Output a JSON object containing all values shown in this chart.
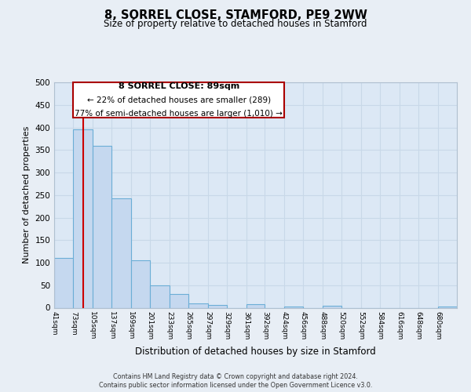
{
  "title": "8, SORREL CLOSE, STAMFORD, PE9 2WW",
  "subtitle": "Size of property relative to detached houses in Stamford",
  "xlabel": "Distribution of detached houses by size in Stamford",
  "ylabel": "Number of detached properties",
  "property_size": 89,
  "bar_edges": [
    41,
    73,
    105,
    137,
    169,
    201,
    233,
    265,
    297,
    329,
    361,
    392,
    424,
    456,
    488,
    520,
    552,
    584,
    616,
    648,
    680
  ],
  "bar_heights": [
    110,
    395,
    360,
    243,
    105,
    50,
    30,
    9,
    6,
    0,
    7,
    0,
    3,
    0,
    5,
    0,
    0,
    0,
    0,
    0,
    3
  ],
  "bar_color": "#c5d8ef",
  "bar_edge_color": "#6baed6",
  "bar_linewidth": 0.8,
  "vline_color": "#cc0000",
  "vline_linewidth": 1.5,
  "ylim": [
    0,
    500
  ],
  "yticks": [
    0,
    50,
    100,
    150,
    200,
    250,
    300,
    350,
    400,
    450,
    500
  ],
  "annotation_line1": "8 SORREL CLOSE: 89sqm",
  "annotation_line2": "← 22% of detached houses are smaller (289)",
  "annotation_line3": "77% of semi-detached houses are larger (1,010) →",
  "footnote1": "Contains HM Land Registry data © Crown copyright and database right 2024.",
  "footnote2": "Contains public sector information licensed under the Open Government Licence v3.0.",
  "bg_color": "#e8eef5",
  "plot_bg_color": "#dce8f5",
  "grid_color": "#c8d8e8",
  "tick_labels": [
    "41sqm",
    "73sqm",
    "105sqm",
    "137sqm",
    "169sqm",
    "201sqm",
    "233sqm",
    "265sqm",
    "297sqm",
    "329sqm",
    "361sqm",
    "392sqm",
    "424sqm",
    "456sqm",
    "488sqm",
    "520sqm",
    "552sqm",
    "584sqm",
    "616sqm",
    "648sqm",
    "680sqm"
  ],
  "ann_rect_color": "#aa0000",
  "ann_face_color": "#ffffff"
}
